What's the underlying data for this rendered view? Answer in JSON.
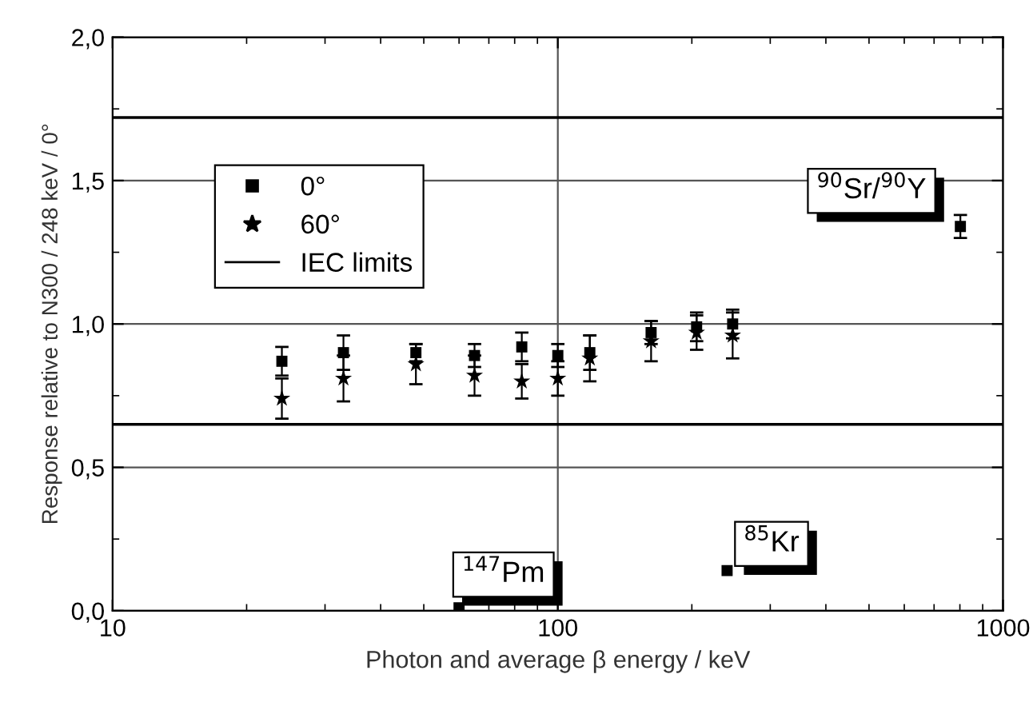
{
  "chart_data": {
    "type": "scatter",
    "xlabel": "Photon and average β energy / keV",
    "ylabel": "Response relative to N300 / 248 keV / 0°",
    "log": "x",
    "xlim": [
      10,
      1000
    ],
    "xticks": [
      10,
      100,
      1000
    ],
    "ylim": [
      0,
      2
    ],
    "yticks": [
      {
        "value": 0,
        "label": "0,0"
      },
      {
        "value": 0.5,
        "label": "0,5"
      },
      {
        "value": 1,
        "label": "1,0"
      },
      {
        "value": 1.5,
        "label": "1,5"
      },
      {
        "value": 2,
        "label": "2,0"
      }
    ],
    "grid": true,
    "legend": "top left",
    "series": [
      {
        "name": "0°",
        "color": "#000000",
        "marker": "square",
        "x": [
          24,
          33,
          48,
          65,
          83,
          100,
          118,
          162,
          205,
          247,
          802,
          60,
          240
        ],
        "values": [
          0.87,
          0.9,
          0.9,
          0.89,
          0.92,
          0.89,
          0.9,
          0.97,
          0.99,
          1.0,
          1.34,
          0.01,
          0.14
        ],
        "errors": [
          0.05,
          0.06,
          0.03,
          0.04,
          0.05,
          0.04,
          0.06,
          0.04,
          0.05,
          0.05,
          0.04,
          null,
          null
        ]
      },
      {
        "name": "60°",
        "color": "#000000",
        "marker": "star",
        "x": [
          24,
          33,
          48,
          65,
          83,
          100,
          118,
          162,
          205,
          247
        ],
        "values": [
          0.74,
          0.81,
          0.86,
          0.82,
          0.8,
          0.81,
          0.88,
          0.94,
          0.97,
          0.96
        ],
        "errors": [
          0.07,
          0.08,
          0.07,
          0.07,
          0.06,
          0.06,
          0.08,
          0.07,
          0.06,
          0.08
        ]
      }
    ],
    "ref_lines": [
      {
        "axis": "y",
        "value": 1.72,
        "label": "IEC limits",
        "color": "#000000"
      },
      {
        "axis": "y",
        "value": 0.65,
        "color": "#000000"
      }
    ],
    "annotations": [
      {
        "text": "$^{90}$Sr/$^{90}$Y",
        "x": 802,
        "y": 1.34
      },
      {
        "text": "$^{147}$Pm",
        "x": 60,
        "y": 0.01
      },
      {
        "text": "$^{85}$Kr",
        "x": 240,
        "y": 0.14
      }
    ]
  }
}
